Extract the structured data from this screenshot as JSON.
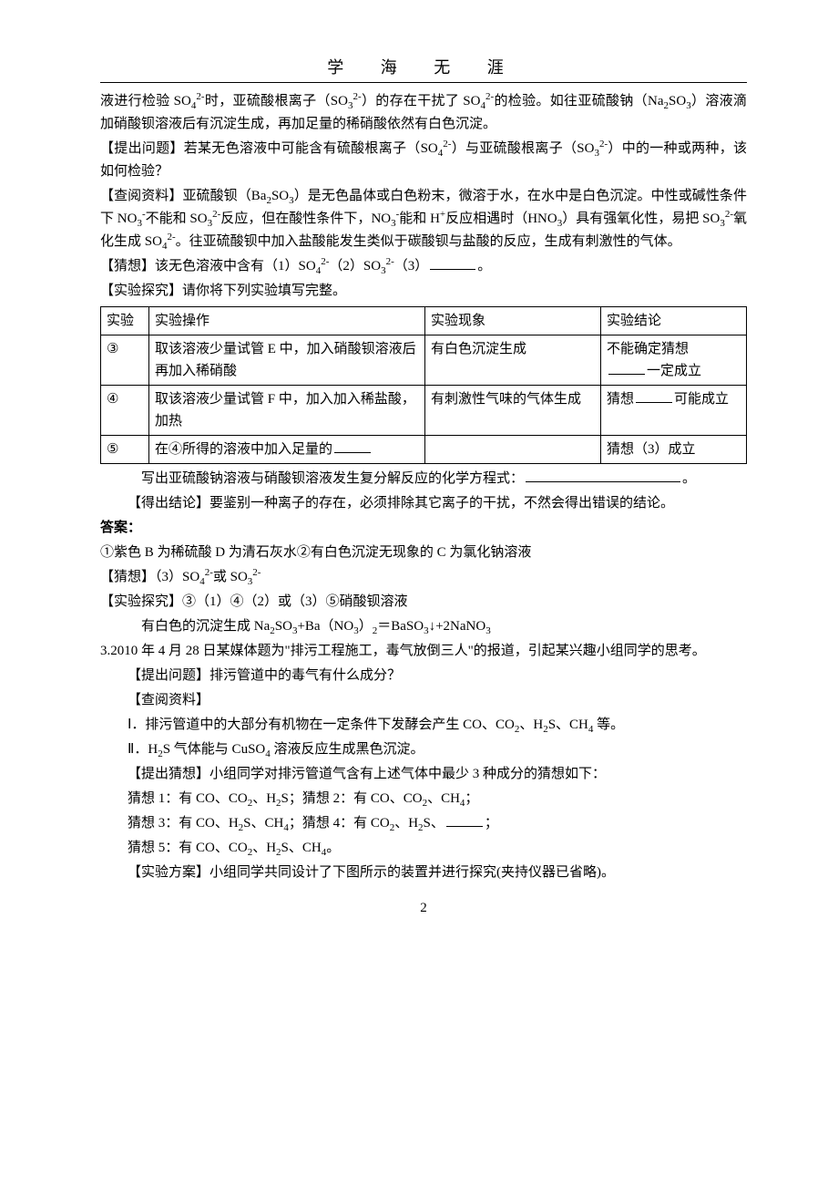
{
  "header": {
    "title": "学 海 无 涯"
  },
  "body": {
    "p1": "液进行检验 SO₄²⁻时，亚硫酸根离子（SO₃²⁻）的存在干扰了 SO₄²⁻的检验。如往亚硫酸钠（Na₂SO₃）溶液滴加硝酸钡溶液后有沉淀生成，再加足量的稀硝酸依然有白色沉淀。",
    "p2_label": "【提出问题】",
    "p2": "若某无色溶液中可能含有硫酸根离子（SO₄²⁻）与亚硫酸根离子（SO₃²⁻）中的一种或两种，该如何检验？",
    "p3_label": "【查阅资料】",
    "p3": "亚硫酸钡（Ba₂SO₃）是无色晶体或白色粉末，微溶于水，在水中是白色沉淀。中性或碱性条件下 NO₃⁻不能和 SO₃²⁻反应，但在酸性条件下，NO₃⁻能和 H⁺反应相遇时（HNO₃）具有强氧化性，易把 SO₃²⁻氧化生成 SO₄²⁻。往亚硫酸钡中加入盐酸能发生类似于碳酸钡与盐酸的反应，生成有刺激性的气体。",
    "p4_label": "【猜想】",
    "p4": "该无色溶液中含有（1）SO₄²⁻（2）SO₃²⁻（3）",
    "p4_end": "。",
    "p5_label": "【实验探究】",
    "p5": "请你将下列实验填写完整。"
  },
  "table": {
    "headers": {
      "c1": "实验",
      "c2": "实验操作",
      "c3": "实验现象",
      "c4": "实验结论"
    },
    "rows": [
      {
        "c1": "③",
        "c2": "取该溶液少量试管 E 中，加入硝酸钡溶液后再加入稀硝酸",
        "c3": "有白色沉淀生成",
        "c4_pre": "不能确定猜想",
        "c4_post": "一定成立"
      },
      {
        "c1": "④",
        "c2": "取该溶液少量试管 F 中，加入加入稀盐酸，加热",
        "c3": "有刺激性气味的气体生成",
        "c4_pre": "猜想",
        "c4_post": "可能成立"
      },
      {
        "c1": "⑤",
        "c2_pre": "在④所得的溶液中加入足量的",
        "c3": "",
        "c4": "猜想（3）成立"
      }
    ]
  },
  "after_table": {
    "p6_pre": "写出亚硫酸钠溶液与硝酸钡溶液发生复分解反应的化学方程式：",
    "p6_post": "。",
    "p7_label": "【得出结论】",
    "p7": "要鉴别一种离子的存在，必须排除其它离子的干扰，不然会得出错误的结论。"
  },
  "answers": {
    "title": "答案：",
    "a1": "①紫色 B 为稀硫酸 D 为清石灰水②有白色沉淀无现象的 C 为氯化钠溶液",
    "a2": "【猜想】（3）SO₄²⁻或 SO₃²⁻",
    "a3": "【实验探究】③（1）④（2）或（3）⑤硝酸钡溶液",
    "a4": "有白色的沉淀生成 Na₂SO₃+Ba（NO₃）₂＝BaSO₃↓+2NaNO₃"
  },
  "q3": {
    "intro": "3.2010 年 4 月 28 日某媒体题为\"排污工程施工，毒气放倒三人\"的报道，引起某兴趣小组同学的思考。",
    "q_label": "【提出问题】",
    "q_text": "排污管道中的毒气有什么成分？",
    "r_label": "【查阅资料】",
    "r1": "Ⅰ．排污管道中的大部分有机物在一定条件下发酵会产生 CO、CO₂、H₂S、CH₄ 等。",
    "r2": "Ⅱ．H₂S 气体能与 CuSO₄ 溶液反应生成黑色沉淀。",
    "g_label": "【提出猜想】",
    "g_text": "小组同学对排污管道气含有上述气体中最少 3 种成分的猜想如下：",
    "g1": "猜想 1：有 CO、CO₂、H₂S；猜想 2：有 CO、CO₂、CH₄；",
    "g2_pre": "猜想 3：有 CO、H₂S、CH₄；猜想 4：有 CO₂、H₂S、",
    "g2_post": "；",
    "g3": "猜想 5：有 CO、CO₂、H₂S、CH₄。",
    "s_label": "【实验方案】",
    "s_text": "小组同学共同设计了下图所示的装置并进行探究(夹持仪器已省略)。"
  },
  "page_number": "2"
}
